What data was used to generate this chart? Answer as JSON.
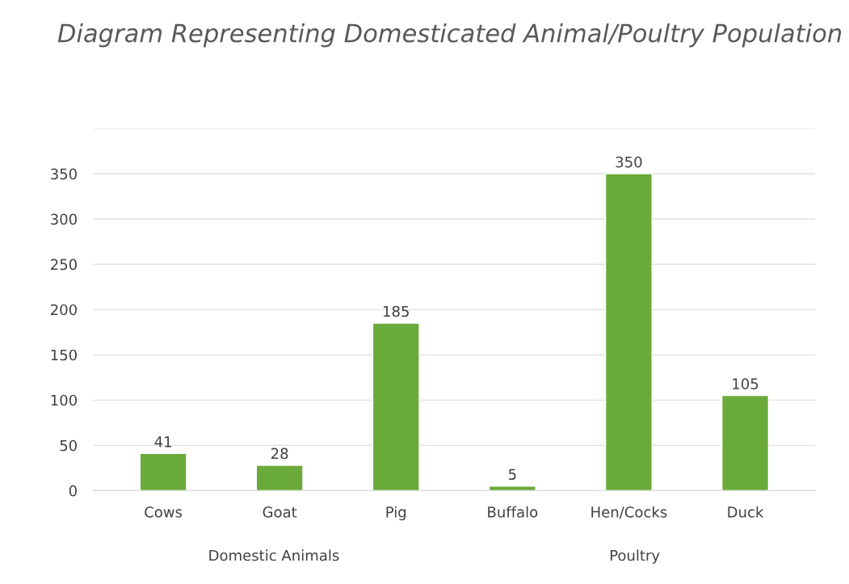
{
  "chart_data": {
    "type": "bar",
    "title": "Diagram Representing Domesticated Animal/Poultry Population",
    "categories": [
      "Cows",
      "Goat",
      "Pig",
      "Buffalo",
      "Hen/Cocks",
      "Duck"
    ],
    "values": [
      41,
      28,
      185,
      5,
      350,
      105
    ],
    "color": "#6aaa3a",
    "ylim": [
      0,
      400
    ],
    "yticks": [
      0,
      50,
      100,
      150,
      200,
      250,
      300,
      350,
      {
        "value": 400,
        "label": null
      }
    ],
    "grid": "y",
    "data_labels": true,
    "annotations": [
      "Domestic Animals",
      "Poultry"
    ]
  }
}
